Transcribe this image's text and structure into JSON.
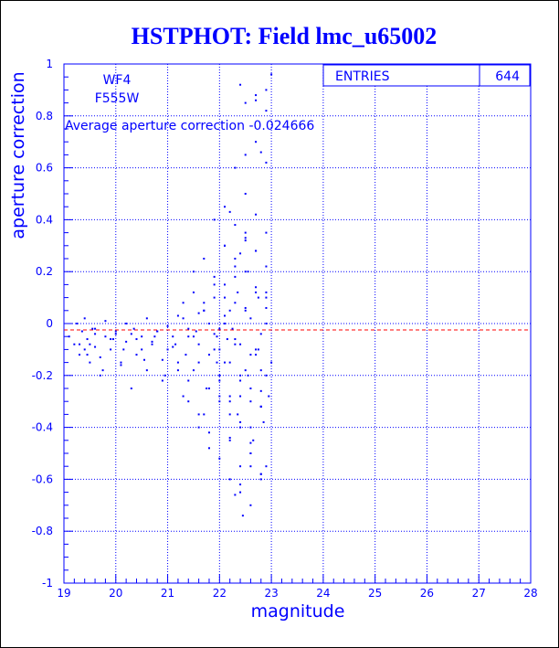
{
  "colors": {
    "accent": "#0000ff",
    "background": "#ffffff",
    "reference_line": "#ff0000"
  },
  "chart_data": {
    "type": "scatter",
    "title": "HSTPHOT: Field lmc_u65002",
    "xlabel": "magnitude",
    "ylabel": "aperture correction",
    "xlim": [
      19,
      28
    ],
    "ylim": [
      -1,
      1
    ],
    "x_ticks": [
      "19",
      "20",
      "21",
      "22",
      "23",
      "24",
      "25",
      "26",
      "27",
      "28"
    ],
    "y_ticks": [
      "1",
      "0.8",
      "0.6",
      "0.4",
      "0.2",
      "0",
      "-0.2",
      "-0.4",
      "-0.6",
      "-0.8",
      "-1"
    ],
    "grid": true,
    "reference_line": {
      "y": -0.0247,
      "style": "dashed"
    },
    "stats_box": {
      "label": "ENTRIES",
      "value": "644",
      "placement": "top-right"
    },
    "annotations": {
      "chip": "WF4",
      "filter": "F555W",
      "average": "Average aperture correction -0.024666"
    },
    "series": [
      {
        "x": [
          19.1,
          19.2,
          19.25,
          19.3,
          19.35,
          19.4,
          19.45,
          19.5,
          19.55,
          19.6,
          19.7,
          19.8,
          19.9,
          20.0,
          20.1,
          20.2,
          20.3,
          20.4,
          20.5,
          20.6,
          20.7,
          20.8,
          20.9,
          21.0,
          21.1,
          21.2,
          21.3,
          21.4,
          21.5,
          21.6,
          21.7,
          21.8,
          21.9,
          22.0,
          22.1,
          22.2,
          22.3,
          22.4,
          22.5,
          22.6,
          22.7,
          22.8,
          22.9,
          23.0,
          19.3,
          19.45,
          19.6,
          19.75,
          19.95,
          20.15,
          20.35,
          20.55,
          20.75,
          20.95,
          21.15,
          21.35,
          21.55,
          21.75,
          21.95,
          22.15,
          22.35,
          22.55,
          22.75,
          22.95,
          19.4,
          19.6,
          19.8,
          20.0,
          20.2,
          20.4,
          20.6,
          20.8,
          21.0,
          21.2,
          21.4,
          21.6,
          21.8,
          22.0,
          22.2,
          22.4,
          22.6,
          22.8,
          21.3,
          21.5,
          21.7,
          21.9,
          22.1,
          22.3,
          22.5,
          22.7,
          22.9,
          21.4,
          21.6,
          21.8,
          22.0,
          22.2,
          22.4,
          22.6,
          22.8,
          21.5,
          21.7,
          21.9,
          22.1,
          22.3,
          22.5,
          22.7,
          22.9,
          21.6,
          21.8,
          22.0,
          22.2,
          22.4,
          22.6,
          22.8,
          21.7,
          21.9,
          22.1,
          22.3,
          22.5,
          22.7,
          22.9,
          21.8,
          22.0,
          22.2,
          22.4,
          22.6,
          22.8,
          21.9,
          22.1,
          22.3,
          22.5,
          22.7,
          22.9,
          22.0,
          22.2,
          22.4,
          22.6,
          22.8,
          22.1,
          22.3,
          22.5,
          22.7,
          22.9,
          22.2,
          22.4,
          22.6,
          22.8,
          22.3,
          22.5,
          22.7,
          22.9,
          22.4,
          22.6,
          22.8,
          22.5,
          22.7,
          22.9,
          21.3,
          21.5,
          21.7,
          21.9,
          22.1,
          22.3,
          22.5,
          22.7,
          22.9,
          21.2,
          21.4,
          21.6,
          21.8,
          22.0,
          22.2,
          22.4,
          22.6,
          22.8,
          19.5,
          19.7,
          19.9,
          20.1,
          20.3,
          20.5,
          20.7,
          20.9,
          21.1,
          22.4,
          22.45,
          22.7,
          22.8,
          22.9,
          22.9,
          23.0,
          22.3,
          22.2,
          22.5,
          22.6,
          22.4,
          22.1,
          21.95,
          22.25,
          22.35,
          22.55,
          22.65,
          22.75,
          22.85
        ],
        "y": [
          -0.05,
          -0.08,
          0.0,
          -0.12,
          -0.03,
          -0.1,
          -0.06,
          -0.15,
          -0.02,
          -0.09,
          -0.2,
          -0.05,
          -0.1,
          -0.03,
          -0.15,
          -0.07,
          -0.25,
          -0.12,
          -0.05,
          -0.18,
          -0.08,
          -0.03,
          -0.22,
          -0.1,
          -0.05,
          -0.15,
          -0.28,
          -0.02,
          -0.18,
          -0.08,
          -0.35,
          -0.12,
          -0.04,
          -0.22,
          -0.15,
          -0.3,
          -0.06,
          -0.4,
          -0.18,
          -0.25,
          -0.1,
          -0.32,
          -0.2,
          -0.15,
          -0.08,
          -0.12,
          -0.04,
          -0.18,
          -0.06,
          -0.1,
          -0.02,
          -0.14,
          -0.05,
          -0.2,
          -0.08,
          -0.12,
          -0.03,
          -0.25,
          -0.15,
          -0.06,
          -0.35,
          -0.2,
          -0.1,
          -0.28,
          0.02,
          -0.02,
          0.01,
          -0.04,
          0.0,
          -0.06,
          0.02,
          -0.03,
          -0.01,
          0.03,
          -0.05,
          0.04,
          0.0,
          -0.02,
          0.05,
          -0.08,
          0.02,
          -0.04,
          0.08,
          0.12,
          0.05,
          0.15,
          0.1,
          0.18,
          0.06,
          0.14,
          0.1,
          -0.3,
          -0.35,
          -0.42,
          -0.28,
          -0.45,
          -0.38,
          -0.5,
          -0.32,
          0.2,
          0.25,
          0.18,
          0.3,
          0.22,
          0.35,
          0.28,
          0.12,
          -0.4,
          -0.48,
          -0.52,
          -0.44,
          -0.55,
          -0.46,
          -0.58,
          0.05,
          0.1,
          0.15,
          0.08,
          0.2,
          0.12,
          0.06,
          -0.25,
          -0.3,
          -0.35,
          -0.28,
          -0.4,
          -0.32,
          0.4,
          0.45,
          0.38,
          0.5,
          0.42,
          0.35,
          -0.1,
          -0.15,
          -0.2,
          -0.12,
          -0.18,
          0.3,
          0.25,
          0.32,
          0.28,
          0.22,
          -0.6,
          -0.62,
          -0.55,
          -0.58,
          0.6,
          0.65,
          0.7,
          0.62,
          -0.65,
          -0.7,
          -0.6,
          0.85,
          0.88,
          0.82,
          0.02,
          -0.05,
          0.08,
          -0.1,
          0.03,
          -0.08,
          0.05,
          -0.12,
          0.0,
          -0.18,
          -0.22,
          -0.15,
          -0.25,
          -0.2,
          -0.28,
          -0.22,
          -0.3,
          -0.26,
          -0.08,
          -0.13,
          -0.06,
          -0.16,
          -0.04,
          -0.1,
          -0.07,
          -0.14,
          -0.09,
          0.92,
          -0.74,
          0.86,
          0.66,
          0.9,
          -0.55,
          0.96,
          -0.66,
          0.43,
          0.33,
          -0.5,
          0.27,
          0.0,
          -0.05,
          -0.02,
          0.12,
          0.2,
          -0.45,
          0.1,
          -0.38
        ]
      }
    ]
  }
}
